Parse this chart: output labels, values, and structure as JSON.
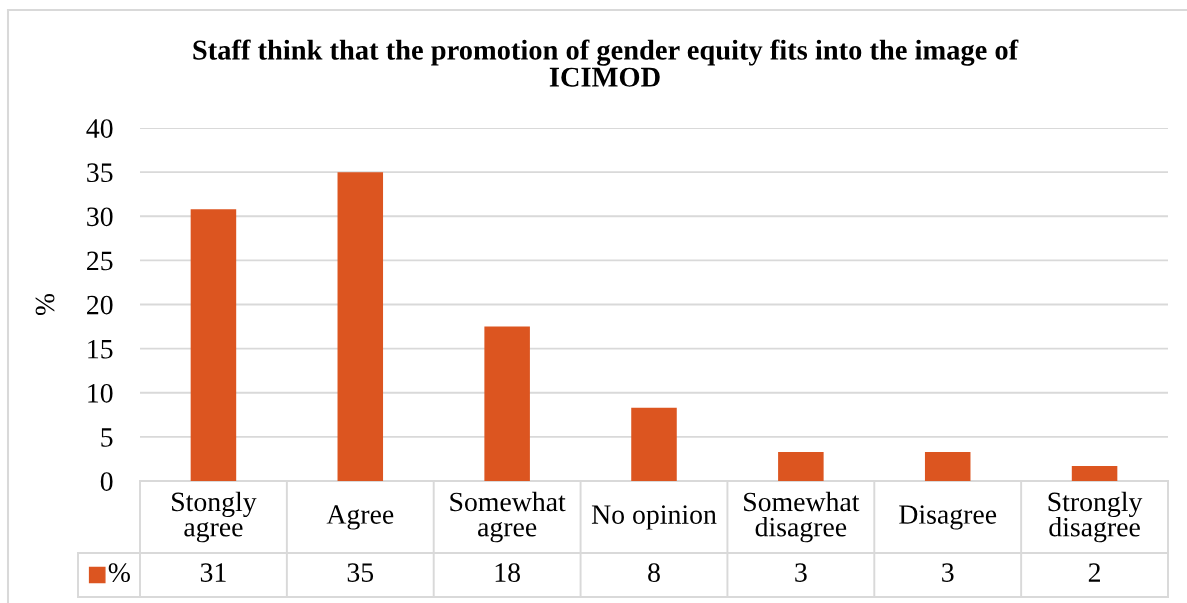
{
  "chart_data": {
    "type": "bar",
    "title": "Staff think that the promotion of gender equity fits into the image of ICIMOD",
    "ylabel": "%",
    "categories": [
      "Stongly agree",
      "Agree",
      "Somewhat agree",
      "No opinion",
      "Somewhat disagree",
      "Disagree",
      "Strongly disagree"
    ],
    "series": [
      {
        "name": "%",
        "color": "#dc5520",
        "values": [
          30.8,
          35,
          17.5,
          8.3,
          3.3,
          3.3,
          1.7
        ],
        "value_labels": [
          "31",
          "35",
          "18",
          "8",
          "3",
          "3",
          "2"
        ]
      }
    ],
    "ylim": [
      0,
      40
    ],
    "yticks": [
      0,
      5,
      10,
      15,
      20,
      25,
      30,
      35,
      40
    ],
    "grid": "y",
    "legend": "bottom left"
  }
}
